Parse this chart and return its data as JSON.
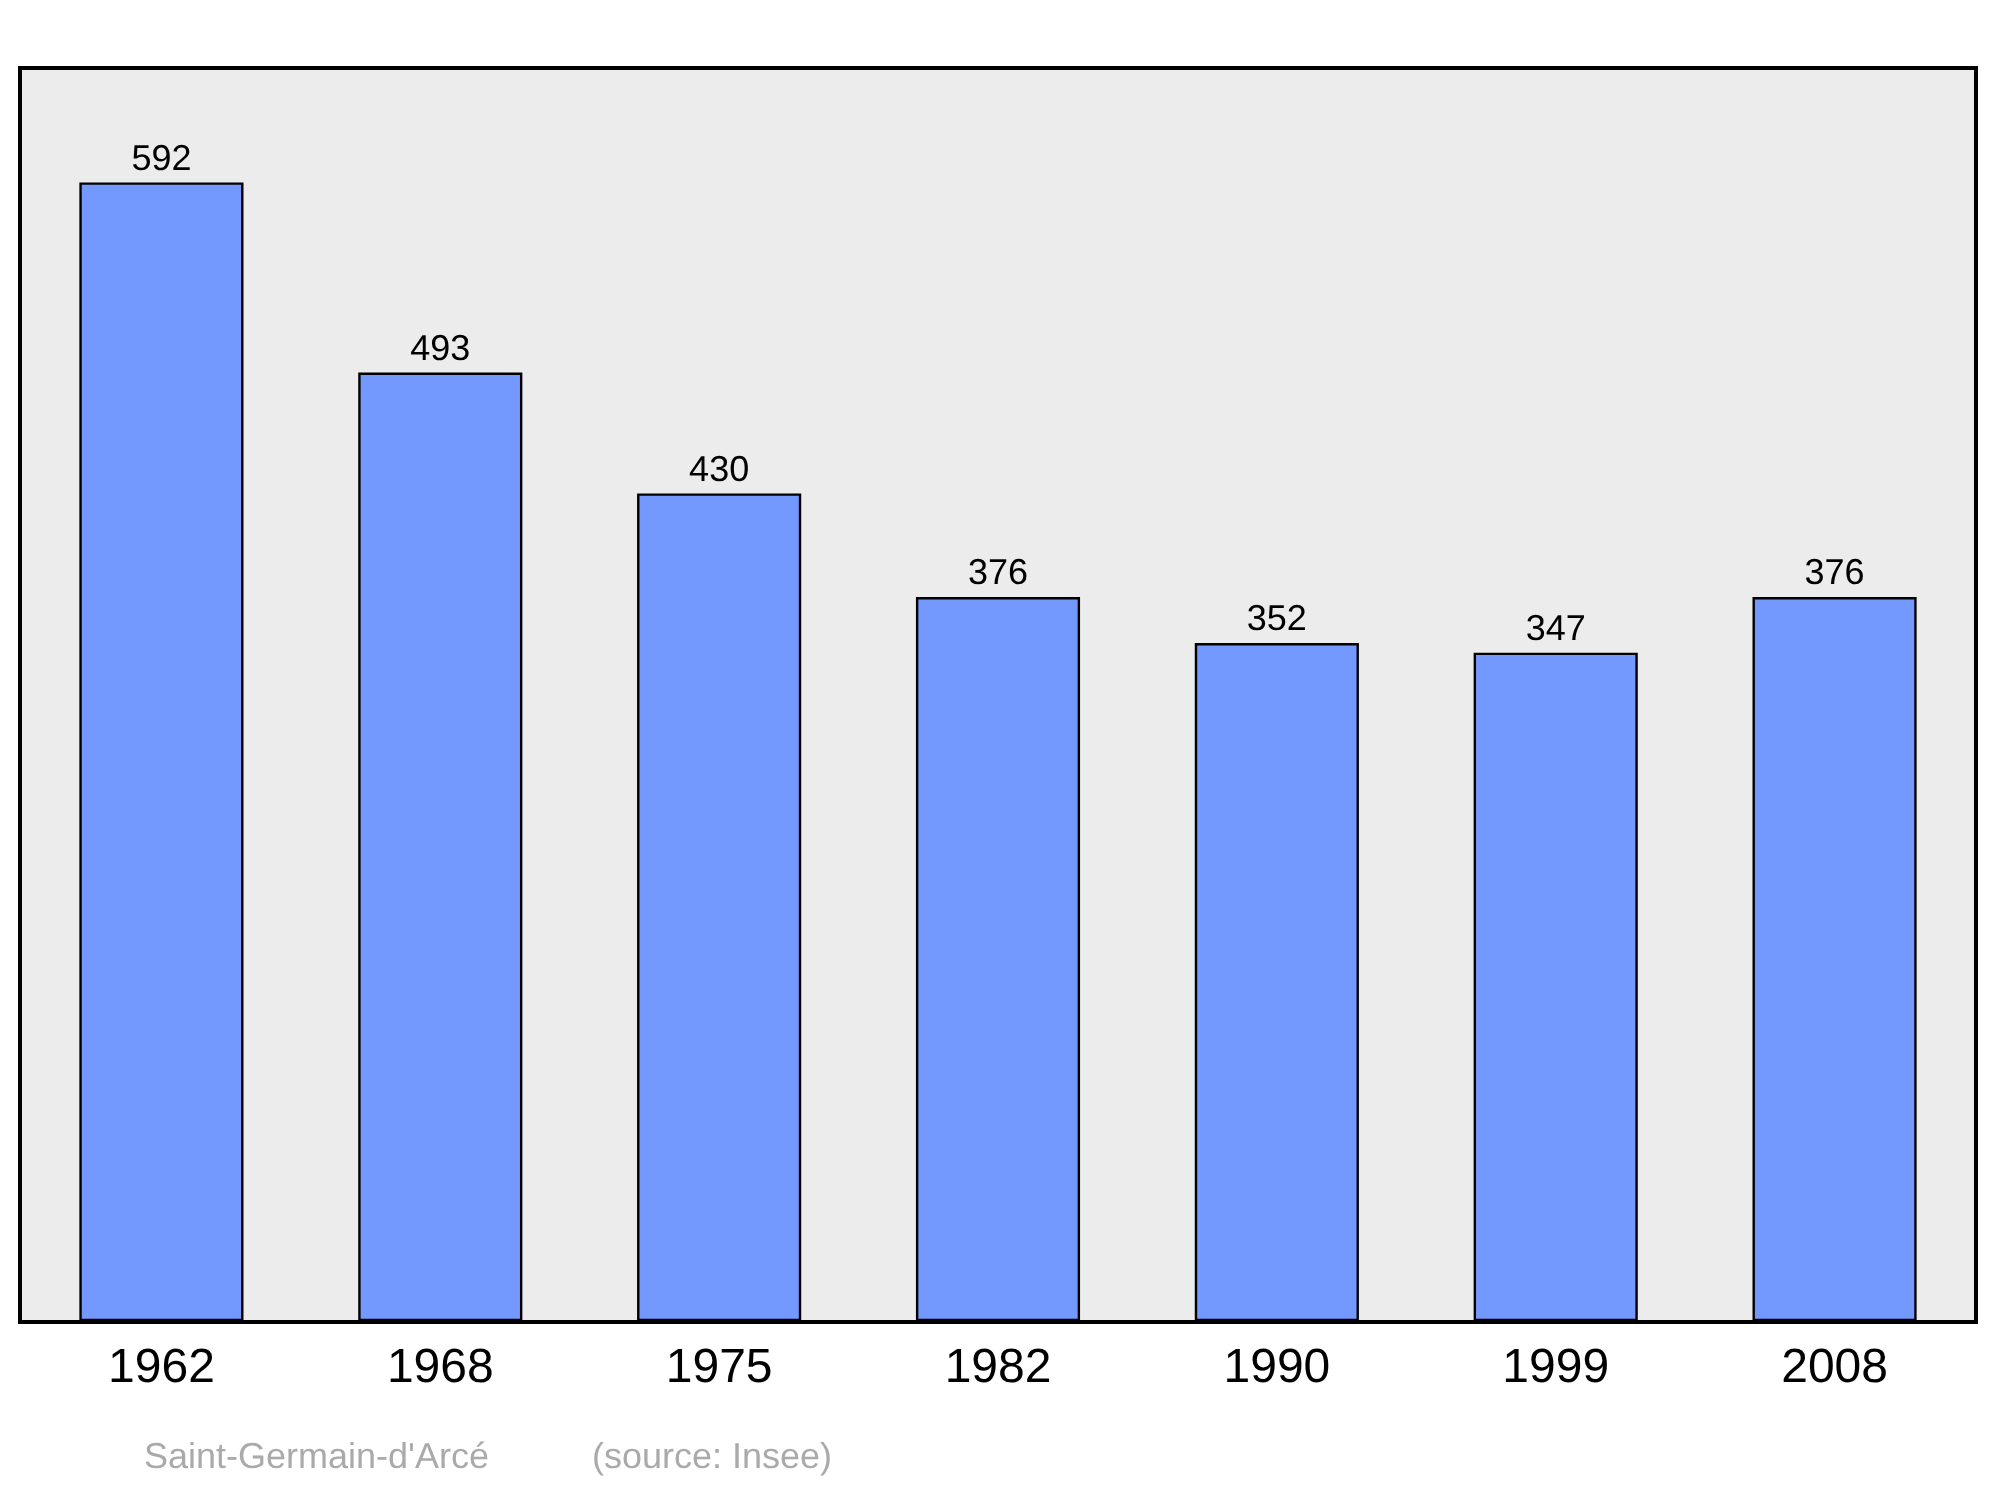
{
  "chart_data": {
    "type": "bar",
    "categories": [
      "1962",
      "1968",
      "1975",
      "1982",
      "1990",
      "1999",
      "2008"
    ],
    "values": [
      592,
      493,
      430,
      376,
      352,
      347,
      376
    ],
    "color": "#7399ff",
    "data_labels": true,
    "grid": false,
    "legend": false,
    "annotations": [
      "Saint-Germain-d'Arcé",
      "(source: Insee)"
    ]
  }
}
